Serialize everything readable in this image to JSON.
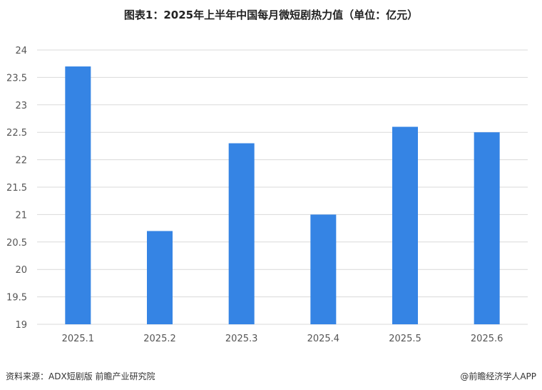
{
  "chart_data": {
    "type": "bar",
    "title": "图表1：2025年上半年中国每月微短剧热力值（单位：亿元）",
    "categories": [
      "2025.1",
      "2025.2",
      "2025.3",
      "2025.4",
      "2025.5",
      "2025.6"
    ],
    "values": [
      23.7,
      20.7,
      22.3,
      21.0,
      22.6,
      22.5
    ],
    "ylim": [
      19,
      24
    ],
    "yticks": [
      "19",
      "19.5",
      "20",
      "20.5",
      "21",
      "21.5",
      "22",
      "22.5",
      "23",
      "23.5",
      "24"
    ],
    "xlabel": "",
    "ylabel": "",
    "grid": true,
    "bar_color": "#3584E4",
    "grid_color": "#D9D9D9"
  },
  "footer": {
    "source": "资料来源：ADX短剧版  前瞻产业研究院",
    "credit": "@前瞻经济学人APP"
  }
}
